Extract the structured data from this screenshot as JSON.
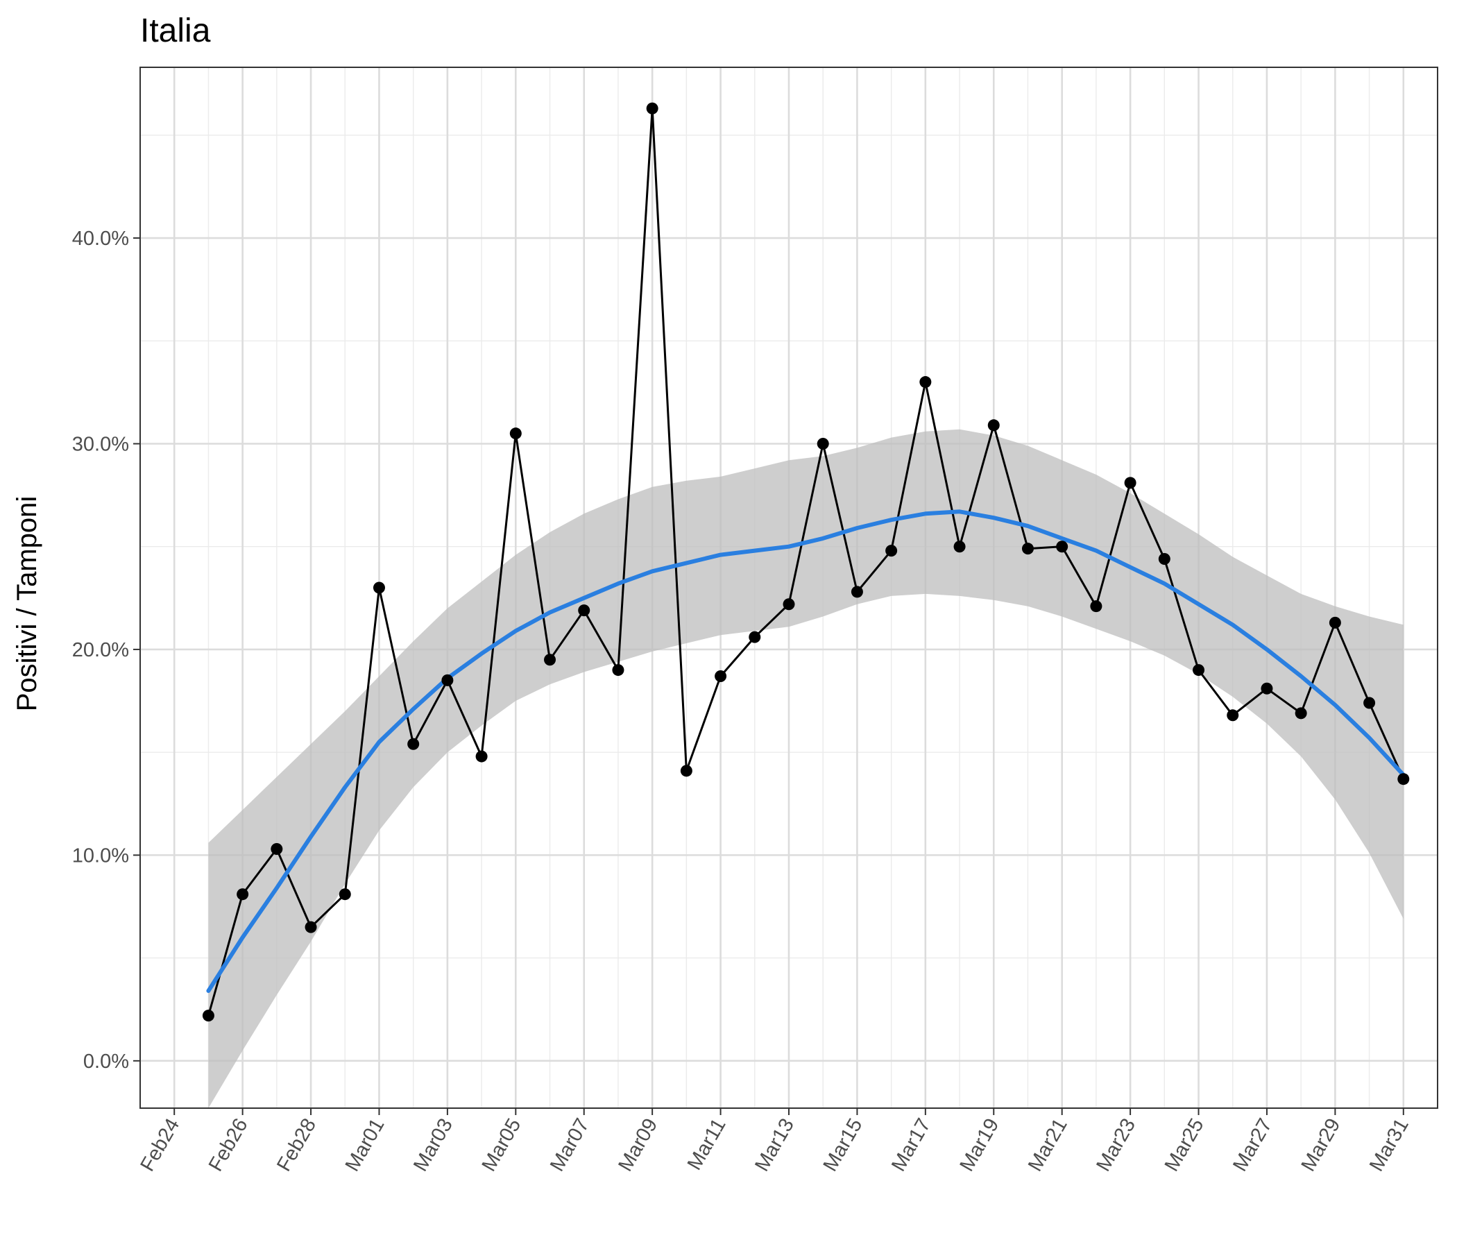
{
  "chart_data": {
    "type": "line",
    "title": "Italia",
    "xlabel": "",
    "ylabel": "Positivi / Tamponi",
    "x_tick_labels": [
      "Feb24",
      "Feb26",
      "Feb28",
      "Mar01",
      "Mar03",
      "Mar05",
      "Mar07",
      "Mar09",
      "Mar11",
      "Mar13",
      "Mar15",
      "Mar17",
      "Mar19",
      "Mar21",
      "Mar23",
      "Mar25",
      "Mar27",
      "Mar29",
      "Mar31"
    ],
    "y_tick_labels": [
      "0.0%",
      "10.0%",
      "20.0%",
      "30.0%",
      "40.0%"
    ],
    "ylim": [
      -2.3,
      48.3
    ],
    "xlim": [
      "2020-02-23",
      "2020-04-01"
    ],
    "grid": true,
    "x": [
      "2020-02-25",
      "2020-02-26",
      "2020-02-27",
      "2020-02-28",
      "2020-02-29",
      "2020-03-01",
      "2020-03-02",
      "2020-03-03",
      "2020-03-04",
      "2020-03-05",
      "2020-03-06",
      "2020-03-07",
      "2020-03-08",
      "2020-03-09",
      "2020-03-10",
      "2020-03-11",
      "2020-03-12",
      "2020-03-13",
      "2020-03-14",
      "2020-03-15",
      "2020-03-16",
      "2020-03-17",
      "2020-03-18",
      "2020-03-19",
      "2020-03-20",
      "2020-03-21",
      "2020-03-22",
      "2020-03-23",
      "2020-03-24",
      "2020-03-25",
      "2020-03-26",
      "2020-03-27",
      "2020-03-28",
      "2020-03-29",
      "2020-03-30",
      "2020-03-31"
    ],
    "series": [
      {
        "values": [
          2.2,
          8.1,
          10.3,
          6.5,
          8.1,
          23.0,
          15.4,
          18.5,
          14.8,
          30.5,
          19.5,
          21.9,
          19.0,
          46.3,
          14.1,
          18.7,
          20.6,
          22.2,
          30.0,
          22.8,
          24.8,
          33.0,
          25.0,
          30.9,
          24.9,
          25.0,
          22.1,
          28.1,
          24.4,
          19.0,
          16.8,
          18.1,
          16.9,
          21.3,
          17.4,
          13.7
        ],
        "color": "#000000"
      },
      {
        "values": [
          3.4,
          6.0,
          8.4,
          10.9,
          13.3,
          15.5,
          17.1,
          18.6,
          19.8,
          20.9,
          21.8,
          22.5,
          23.2,
          23.8,
          24.2,
          24.6,
          24.8,
          25.0,
          25.4,
          25.9,
          26.3,
          26.6,
          26.7,
          26.4,
          26.0,
          25.4,
          24.8,
          24.0,
          23.2,
          22.2,
          21.2,
          20.0,
          18.7,
          17.3,
          15.7,
          13.9
        ],
        "color": "#2a7fe0"
      }
    ],
    "band": {
      "upper": [
        10.6,
        12.2,
        13.8,
        15.4,
        17.0,
        18.7,
        20.4,
        22.0,
        23.3,
        24.6,
        25.7,
        26.6,
        27.3,
        27.9,
        28.2,
        28.4,
        28.8,
        29.2,
        29.4,
        29.8,
        30.3,
        30.6,
        30.7,
        30.4,
        29.9,
        29.2,
        28.5,
        27.6,
        26.6,
        25.6,
        24.5,
        23.6,
        22.7,
        22.1,
        21.6,
        21.2
      ],
      "lower": [
        -2.3,
        0.5,
        3.2,
        5.8,
        8.6,
        11.2,
        13.3,
        15.0,
        16.3,
        17.5,
        18.3,
        18.9,
        19.4,
        19.9,
        20.3,
        20.7,
        20.9,
        21.1,
        21.6,
        22.2,
        22.6,
        22.7,
        22.6,
        22.4,
        22.1,
        21.6,
        21.0,
        20.4,
        19.7,
        18.8,
        17.7,
        16.4,
        14.8,
        12.7,
        10.1,
        6.9
      ],
      "color": "#bdbdbd"
    }
  }
}
